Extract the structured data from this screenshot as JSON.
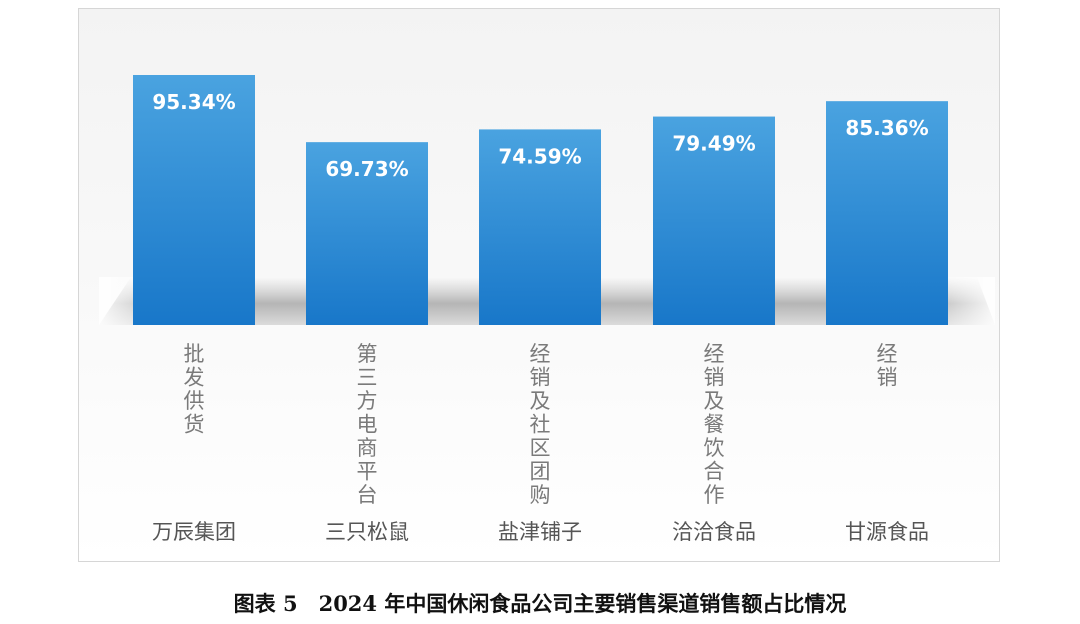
{
  "caption": "图表 5　2024 年中国休闲食品公司主要销售渠道销售额占比情况",
  "chart_data": {
    "type": "bar",
    "title": "",
    "xlabel": "",
    "ylabel": "",
    "ylim": [
      0,
      100
    ],
    "unit": "%",
    "categories": [
      "万辰集团",
      "三只松鼠",
      "盐津铺子",
      "洽洽食品",
      "甘源食品"
    ],
    "channels": [
      "批发供货",
      "第三方电商平台",
      "经销及社区团购",
      "经销及餐饮合作",
      "经销"
    ],
    "values": [
      95.34,
      69.73,
      74.59,
      79.49,
      85.36
    ],
    "data_labels": [
      "95.34%",
      "69.73%",
      "74.59%",
      "79.49%",
      "85.36%"
    ],
    "grid": false,
    "legend": "none",
    "bar_color_top": "#4aa3e0",
    "bar_color_bottom": "#1877c9"
  }
}
